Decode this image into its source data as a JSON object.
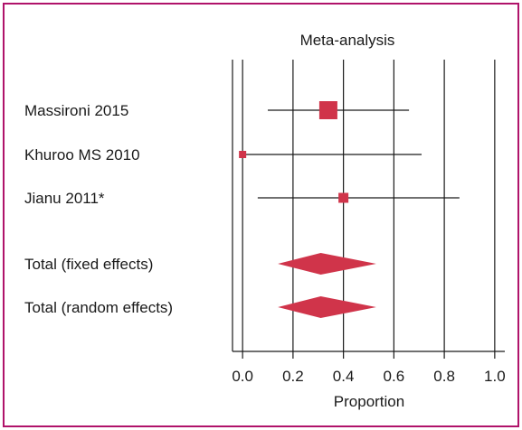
{
  "chart_data": {
    "type": "forest",
    "title": "Meta-analysis",
    "xlabel": "Proportion",
    "xlim": [
      -0.04,
      1.04
    ],
    "xticks": [
      0.0,
      0.2,
      0.4,
      0.6,
      0.8,
      1.0
    ],
    "xtick_labels": [
      "0.0",
      "0.2",
      "0.4",
      "0.6",
      "0.8",
      "1.0"
    ],
    "grid": true,
    "studies": [
      {
        "label": "Massironi 2015",
        "estimate": 0.34,
        "ci": [
          0.1,
          0.66
        ],
        "weight": "large"
      },
      {
        "label": "Khuroo MS 2010",
        "estimate": 0.0,
        "ci": [
          0.0,
          0.71
        ],
        "weight": "small"
      },
      {
        "label": "Jianu 2011*",
        "estimate": 0.4,
        "ci": [
          0.06,
          0.86
        ],
        "weight": "medium"
      }
    ],
    "pooled": [
      {
        "label": "Total (fixed effects)",
        "estimate": 0.31,
        "ci": [
          0.14,
          0.53
        ]
      },
      {
        "label": "Total (random effects)",
        "estimate": 0.31,
        "ci": [
          0.14,
          0.53
        ]
      }
    ],
    "colors": {
      "marker": "#d0344a",
      "frame": "#b0136a",
      "lines": "#1a1a1a"
    }
  }
}
